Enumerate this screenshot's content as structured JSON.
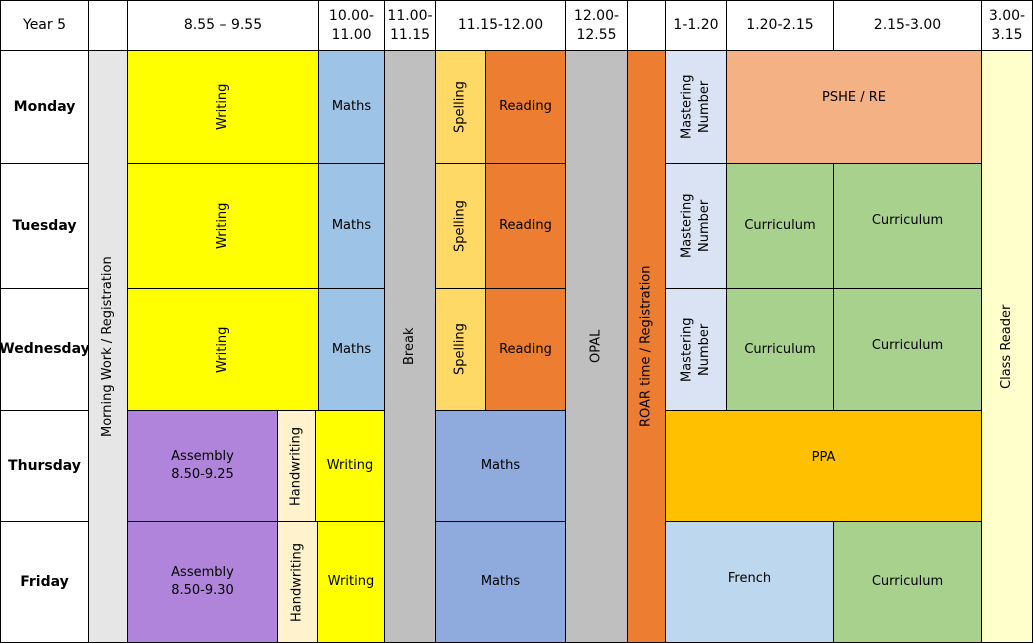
{
  "header": {
    "corner": "Year 5",
    "times": [
      "8.55 – 9.55",
      "10.00-11.00",
      "11.00-11.15",
      "11.15-12.00",
      "12.00-12.55",
      "1-1.20",
      "1.20-2.15",
      "2.15-3.00",
      "3.00-3.15"
    ]
  },
  "days": [
    "Monday",
    "Tuesday",
    "Wednesday",
    "Thursday",
    "Friday"
  ],
  "cells": [
    {
      "text": "Morning Work / Registration"
    },
    {
      "text": "Break"
    },
    {
      "text": "OPAL"
    },
    {
      "text": "ROAR time / Registration"
    },
    {
      "text": "Class Reader"
    },
    {
      "text": "Writing"
    },
    {
      "text": "Maths"
    },
    {
      "text": "Spelling"
    },
    {
      "text": "Reading"
    },
    {
      "text": "Mastering Number"
    },
    {
      "text": "PSHE / RE"
    },
    {
      "text": "Writing"
    },
    {
      "text": "Maths"
    },
    {
      "text": "Spelling"
    },
    {
      "text": "Reading"
    },
    {
      "text": "Mastering Number"
    },
    {
      "text": "Curriculum"
    },
    {
      "text": "Curriculum"
    },
    {
      "text": "Writing"
    },
    {
      "text": "Maths"
    },
    {
      "text": "Spelling"
    },
    {
      "text": "Reading"
    },
    {
      "text": "Mastering Number"
    },
    {
      "text": "Curriculum"
    },
    {
      "text": "Curriculum"
    },
    {
      "text": "Assembly",
      "time": "8.50-9.25"
    },
    {
      "text": "Handwriting"
    },
    {
      "text": "Writing"
    },
    {
      "text": "Maths"
    },
    {
      "text": "PPA"
    },
    {
      "text": "Assembly",
      "time": "8.50-9.30"
    },
    {
      "text": "Handwriting"
    },
    {
      "text": "Writing"
    },
    {
      "text": "Maths"
    },
    {
      "text": "French"
    },
    {
      "text": "Curriculum"
    }
  ]
}
